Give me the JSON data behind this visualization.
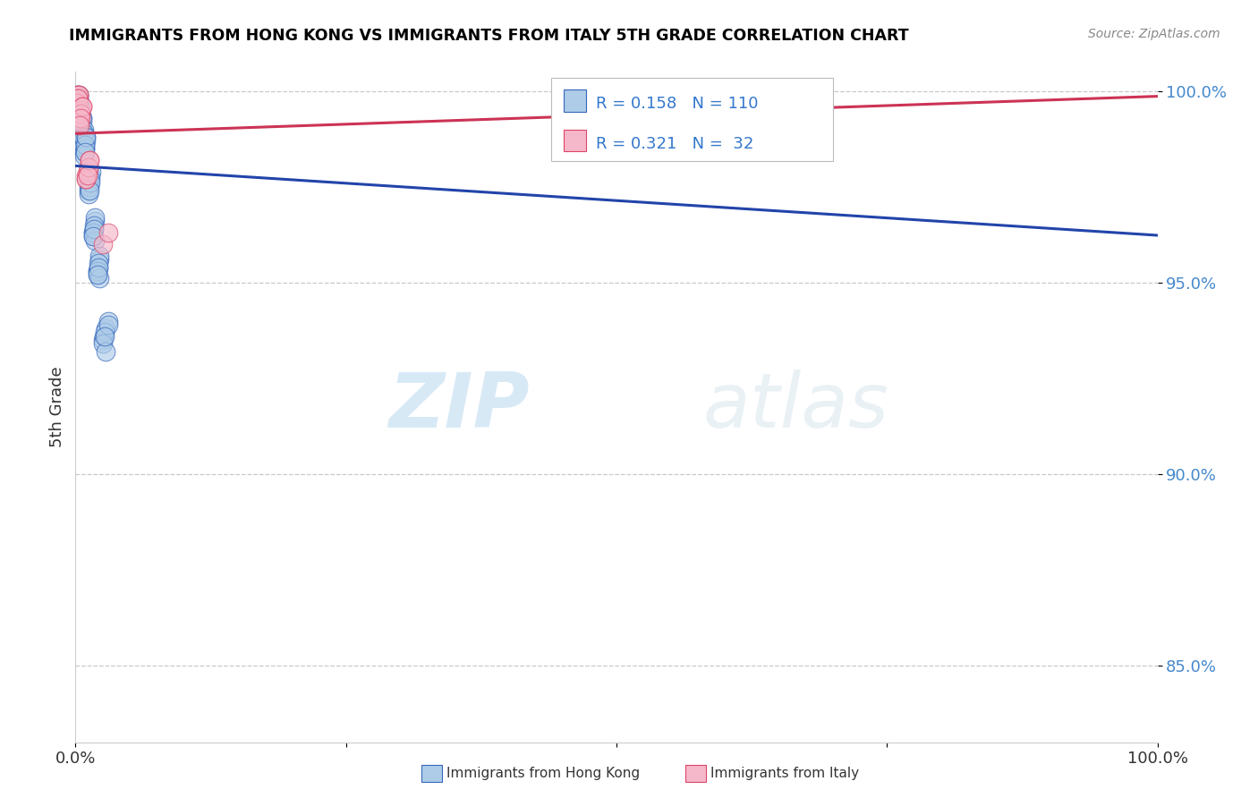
{
  "title": "IMMIGRANTS FROM HONG KONG VS IMMIGRANTS FROM ITALY 5TH GRADE CORRELATION CHART",
  "source": "Source: ZipAtlas.com",
  "ylabel": "5th Grade",
  "xlim": [
    0.0,
    1.0
  ],
  "ylim": [
    0.83,
    1.005
  ],
  "yticks": [
    0.85,
    0.9,
    0.95,
    1.0
  ],
  "ytick_labels": [
    "85.0%",
    "90.0%",
    "95.0%",
    "100.0%"
  ],
  "xticks": [
    0.0,
    0.25,
    0.5,
    0.75,
    1.0
  ],
  "xtick_labels": [
    "0.0%",
    "",
    "",
    "",
    "100.0%"
  ],
  "legend_R_blue": "0.158",
  "legend_N_blue": "110",
  "legend_R_pink": "0.321",
  "legend_N_pink": "32",
  "blue_color": "#aecce8",
  "blue_edge_color": "#3366bb",
  "pink_color": "#f5b8ca",
  "pink_edge_color": "#dd4466",
  "blue_line_color": "#2244aa",
  "pink_line_color": "#cc3355",
  "watermark_zip": "ZIP",
  "watermark_atlas": "atlas",
  "background_color": "#ffffff",
  "grid_color": "#bbbbbb",
  "hk_x": [
    0.001,
    0.002,
    0.001,
    0.003,
    0.002,
    0.001,
    0.002,
    0.003,
    0.001,
    0.002,
    0.001,
    0.002,
    0.001,
    0.003,
    0.002,
    0.001,
    0.002,
    0.003,
    0.002,
    0.001,
    0.003,
    0.004,
    0.003,
    0.004,
    0.003,
    0.002,
    0.001,
    0.003,
    0.004,
    0.002,
    0.002,
    0.003,
    0.002,
    0.003,
    0.004,
    0.003,
    0.002,
    0.003,
    0.004,
    0.002,
    0.005,
    0.006,
    0.005,
    0.004,
    0.006,
    0.005,
    0.004,
    0.005,
    0.006,
    0.005,
    0.004,
    0.006,
    0.005,
    0.007,
    0.008,
    0.007,
    0.006,
    0.008,
    0.007,
    0.006,
    0.009,
    0.01,
    0.009,
    0.008,
    0.01,
    0.009,
    0.008,
    0.009,
    0.01,
    0.009,
    0.012,
    0.014,
    0.012,
    0.013,
    0.015,
    0.014,
    0.013,
    0.012,
    0.014,
    0.013,
    0.016,
    0.018,
    0.017,
    0.016,
    0.018,
    0.017,
    0.016,
    0.018,
    0.017,
    0.016,
    0.02,
    0.022,
    0.021,
    0.02,
    0.022,
    0.021,
    0.02,
    0.022,
    0.021,
    0.02,
    0.025,
    0.028,
    0.026,
    0.03,
    0.027,
    0.025,
    0.028,
    0.03,
    0.56,
    0.027
  ],
  "hk_y": [
    0.999,
    0.998,
    0.997,
    0.999,
    0.998,
    0.997,
    0.998,
    0.999,
    0.997,
    0.998,
    0.996,
    0.997,
    0.995,
    0.998,
    0.996,
    0.995,
    0.997,
    0.998,
    0.996,
    0.994,
    0.995,
    0.996,
    0.994,
    0.997,
    0.995,
    0.993,
    0.992,
    0.994,
    0.996,
    0.993,
    0.993,
    0.994,
    0.992,
    0.995,
    0.996,
    0.994,
    0.992,
    0.993,
    0.995,
    0.991,
    0.991,
    0.993,
    0.99,
    0.989,
    0.992,
    0.99,
    0.988,
    0.991,
    0.993,
    0.989,
    0.988,
    0.99,
    0.987,
    0.988,
    0.99,
    0.987,
    0.986,
    0.989,
    0.988,
    0.985,
    0.986,
    0.988,
    0.985,
    0.984,
    0.987,
    0.985,
    0.983,
    0.986,
    0.988,
    0.984,
    0.975,
    0.978,
    0.974,
    0.976,
    0.979,
    0.977,
    0.975,
    0.973,
    0.976,
    0.974,
    0.963,
    0.966,
    0.964,
    0.962,
    0.967,
    0.965,
    0.963,
    0.961,
    0.964,
    0.962,
    0.953,
    0.956,
    0.954,
    0.952,
    0.957,
    0.955,
    0.953,
    0.951,
    0.954,
    0.952,
    0.935,
    0.938,
    0.936,
    0.94,
    0.937,
    0.934,
    0.932,
    0.939,
    1.0,
    0.936
  ],
  "it_x": [
    0.001,
    0.002,
    0.001,
    0.003,
    0.002,
    0.001,
    0.002,
    0.003,
    0.001,
    0.002,
    0.004,
    0.005,
    0.004,
    0.006,
    0.005,
    0.004,
    0.005,
    0.006,
    0.005,
    0.004,
    0.01,
    0.012,
    0.01,
    0.013,
    0.011,
    0.01,
    0.012,
    0.013,
    0.54,
    0.011,
    0.025,
    0.03
  ],
  "it_y": [
    0.999,
    0.998,
    0.997,
    0.999,
    0.998,
    0.997,
    0.998,
    0.999,
    0.997,
    0.998,
    0.994,
    0.995,
    0.993,
    0.996,
    0.994,
    0.992,
    0.994,
    0.996,
    0.993,
    0.991,
    0.978,
    0.98,
    0.977,
    0.982,
    0.979,
    0.977,
    0.98,
    0.982,
    0.998,
    0.978,
    0.96,
    0.963
  ]
}
